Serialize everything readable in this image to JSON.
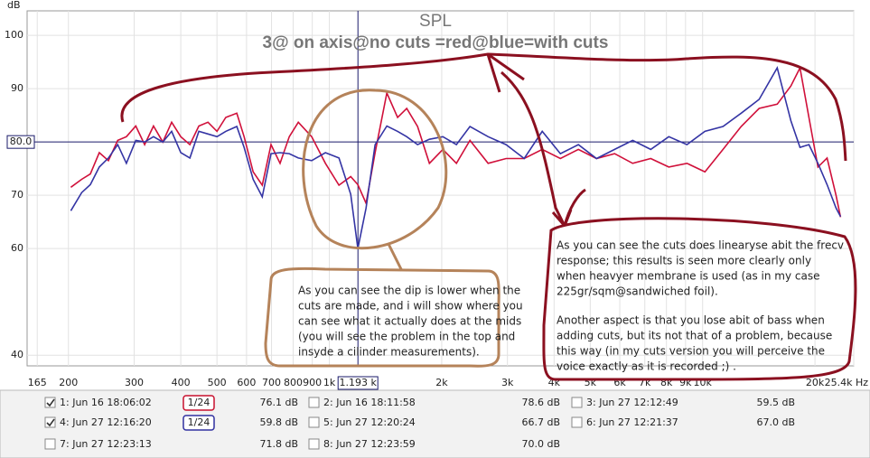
{
  "chart_data": {
    "type": "line",
    "title": "SPL",
    "subtitle": "3@ on axis@no cuts =red@blue=with cuts",
    "y_label": "dB",
    "log_x": true,
    "grid": true,
    "xlim": [
      155,
      25400
    ],
    "ylim": [
      38,
      104.6
    ],
    "xticks": [
      165,
      200,
      300,
      400,
      500,
      600,
      700,
      800,
      900,
      {
        "value": 1000,
        "label": "1k"
      },
      {
        "value": 2000,
        "label": "2k"
      },
      {
        "value": 3000,
        "label": "3k"
      },
      {
        "value": 4000,
        "label": "4k"
      },
      {
        "value": 5000,
        "label": "5k"
      },
      {
        "value": 6000,
        "label": "6k"
      },
      {
        "value": 7000,
        "label": "7k"
      },
      {
        "value": 8000,
        "label": "8k"
      },
      {
        "value": 9000,
        "label": "9k"
      },
      {
        "value": 10000,
        "label": "10k"
      },
      {
        "value": 20000,
        "label": "20k"
      },
      {
        "value": 25400,
        "label": "25.4k Hz"
      }
    ],
    "yticks": [
      40,
      60,
      70,
      90,
      100
    ],
    "cursor": {
      "x": {
        "value": 1193,
        "label": "1.193 k"
      },
      "y": {
        "value": 80,
        "label": "80.0"
      }
    },
    "x": [
      203,
      217,
      229,
      242,
      256,
      271,
      286,
      303,
      320,
      338,
      358,
      378,
      400,
      423,
      447,
      473,
      500,
      528,
      565,
      591,
      625,
      661,
      698,
      738,
      781,
      826,
      897,
      976,
      1061,
      1141,
      1192,
      1254,
      1326,
      1426,
      1524,
      1612,
      1723,
      1854,
      2014,
      2190,
      2381,
      2663,
      2976,
      3327,
      3719,
      4159,
      4648,
      5197,
      5811,
      6496,
      7262,
      8119,
      9078,
      10146,
      11343,
      12682,
      14176,
      15846,
      17236,
      18228,
      19267,
      20367,
      21545,
      22770,
      23421
    ],
    "series": [
      {
        "color": "#d0103a",
        "values": [
          71.5,
          73,
          74,
          78,
          76.5,
          80.3,
          81,
          83,
          79.5,
          83,
          80,
          83.7,
          81,
          79.5,
          83,
          83.7,
          82,
          84.6,
          85.4,
          81,
          74.4,
          71.9,
          79.5,
          76,
          81,
          83.7,
          81,
          76,
          71.9,
          73.5,
          72,
          68.5,
          78,
          89.2,
          84.6,
          86.3,
          82.9,
          76,
          78.6,
          76,
          80.3,
          76,
          76.9,
          76.9,
          78.6,
          76.9,
          78.6,
          76.9,
          77.8,
          76,
          76.9,
          75.3,
          76,
          74.4,
          78.6,
          82.9,
          86.3,
          87.1,
          90.5,
          93.9,
          84.6,
          75.3,
          77,
          70,
          65.9
        ]
      },
      {
        "color": "#3434a4",
        "values": [
          67.1,
          70.5,
          72,
          75.3,
          77,
          79.5,
          76,
          80.3,
          80,
          81,
          80,
          82,
          78,
          77,
          82,
          81.5,
          81,
          82,
          82.9,
          79,
          73,
          69.7,
          77.8,
          78,
          77.8,
          77,
          76.5,
          78,
          77,
          70.2,
          60,
          67.6,
          79.5,
          83,
          82,
          81,
          79.5,
          80.5,
          81,
          79.5,
          82.9,
          81,
          79.5,
          76.9,
          82,
          77.8,
          79.5,
          76.9,
          78.6,
          80.3,
          78.6,
          81,
          79.5,
          82,
          82.9,
          85.4,
          88,
          93.9,
          84,
          79,
          79.5,
          76,
          72,
          67.6,
          66
        ]
      }
    ]
  },
  "annotations": [
    {
      "color": "#000000",
      "lines": [
        "As you can see the dip is lower when the",
        "cuts  are made, and i will show where you",
        "can see what it actually does at the mids",
        "(you will see the problem in the top and",
        "insyde a cilinder measurements)."
      ]
    },
    {
      "color": "#000000",
      "lines": [
        "As you can see the cuts does linearyse abit the frecv",
        "response; this results is seen more clearly only",
        "when heavyer membrane is used (as in my case",
        "225gr/sqm@sandwiched foil)."
      ]
    },
    {
      "color": "#8b1020",
      "lines": [
        "Another aspect is that you lose abit of bass when",
        "adding cuts, but its not that of a problem, because",
        "this way (in my cuts version you will perceive the",
        "voice exactly as it is recorded ;) ."
      ]
    }
  ],
  "legend": [
    {
      "name": "1: Jun 16 18:06:02",
      "color": "#c8102e",
      "checked": true,
      "smoothing": "1/24",
      "value": "76.1 dB"
    },
    {
      "name": "2: Jun 16 18:11:58",
      "color": "#c04080",
      "checked": false,
      "value": "78.6 dB"
    },
    {
      "name": "3: Jun 27 12:12:49",
      "color": "#20a020",
      "checked": false,
      "value": "59.5 dB"
    },
    {
      "name": "4: Jun 27 12:16:20",
      "color": "#3030a0",
      "checked": true,
      "smoothing": "1/24",
      "value": "59.8 dB"
    },
    {
      "name": "5: Jun 27 12:20:24",
      "color": "#8030a0",
      "checked": false,
      "value": "66.7 dB"
    },
    {
      "name": "6: Jun 27 12:21:37",
      "color": "#208080",
      "checked": false,
      "value": "67.0 dB"
    },
    {
      "name": "7: Jun 27 12:23:13",
      "color": "#b0a020",
      "checked": false,
      "value": "71.8 dB"
    },
    {
      "name": "8: Jun 27 12:23:59",
      "color": "#20a040",
      "checked": false,
      "value": "70.0 dB"
    }
  ]
}
